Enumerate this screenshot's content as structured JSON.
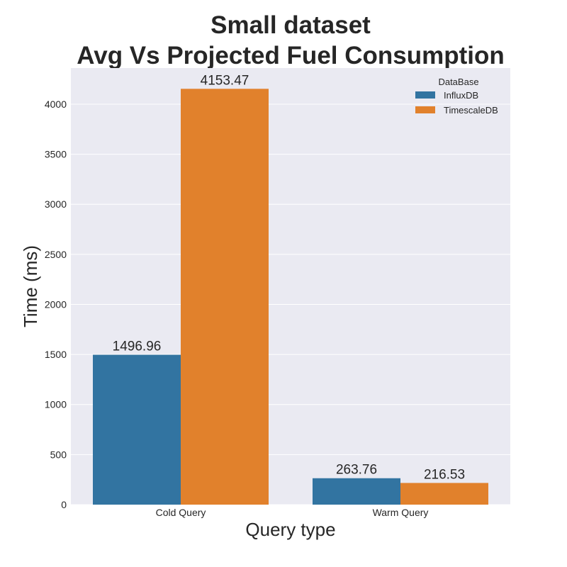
{
  "chart_data": {
    "type": "bar",
    "title_lines": [
      "Small dataset",
      "Avg Vs Projected Fuel Consumption"
    ],
    "xlabel": "Query type",
    "ylabel": "Time (ms)",
    "categories": [
      "Cold Query",
      "Warm Query"
    ],
    "series": [
      {
        "name": "InfluxDB",
        "values": [
          1496.96,
          263.76
        ],
        "color": "#3274a1"
      },
      {
        "name": "TimescaleDB",
        "values": [
          4153.47,
          216.53
        ],
        "color": "#e1812c"
      }
    ],
    "data_labels": [
      [
        "1496.96",
        "263.76"
      ],
      [
        "4153.47",
        "216.53"
      ]
    ],
    "yticks": [
      0,
      500,
      1000,
      1500,
      2000,
      2500,
      3000,
      3500,
      4000
    ],
    "ylim": [
      0,
      4361
    ],
    "grid": true,
    "legend": {
      "title": "DataBase",
      "position": "top-right"
    },
    "background_color": "#eaeaf2"
  }
}
